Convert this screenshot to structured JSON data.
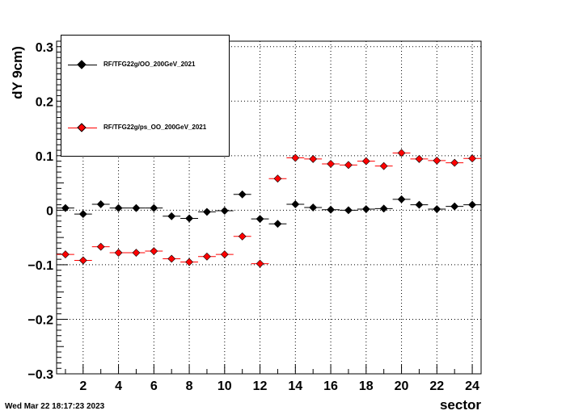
{
  "chart_data": {
    "type": "scatter",
    "xlabel": "sector",
    "ylabel": "dY 9cm)",
    "xlim": [
      0.5,
      24.5
    ],
    "ylim": [
      -0.3,
      0.31
    ],
    "x_ticks": [
      2,
      4,
      6,
      8,
      10,
      12,
      14,
      16,
      18,
      20,
      22,
      24
    ],
    "y_ticks": [
      -0.3,
      -0.2,
      -0.1,
      0,
      0.1,
      0.2,
      0.3
    ],
    "y_tick_labels": [
      "−0.3",
      "−0.2",
      "−0.1",
      "0",
      "0.1",
      "0.2",
      "0.3"
    ],
    "grid": true,
    "legend_position": "top-left",
    "x": [
      1,
      2,
      3,
      4,
      5,
      6,
      7,
      8,
      9,
      10,
      11,
      12,
      13,
      14,
      15,
      16,
      17,
      18,
      19,
      20,
      21,
      22,
      23,
      24
    ],
    "series": [
      {
        "name": "RF/TFG22g/OO_200GeV_2021",
        "color": "#000000",
        "values": [
          0.004,
          -0.007,
          0.011,
          0.004,
          0.004,
          0.004,
          -0.011,
          -0.015,
          -0.003,
          -0.001,
          0.029,
          -0.016,
          -0.025,
          0.011,
          0.005,
          0.001,
          0.0,
          0.002,
          0.003,
          0.02,
          0.01,
          0.002,
          0.007,
          0.01
        ]
      },
      {
        "name": "RF/TFG22g/ps_OO_200GeV_2021",
        "color": "#ff0000",
        "values": [
          -0.081,
          -0.092,
          -0.067,
          -0.078,
          -0.078,
          -0.075,
          -0.089,
          -0.095,
          -0.085,
          -0.081,
          -0.048,
          -0.098,
          0.058,
          0.096,
          0.094,
          0.085,
          0.083,
          0.09,
          0.081,
          0.105,
          0.094,
          0.091,
          0.087,
          0.095
        ]
      }
    ]
  },
  "footer": {
    "timestamp": "Wed Mar 22 18:17:23 2023"
  }
}
